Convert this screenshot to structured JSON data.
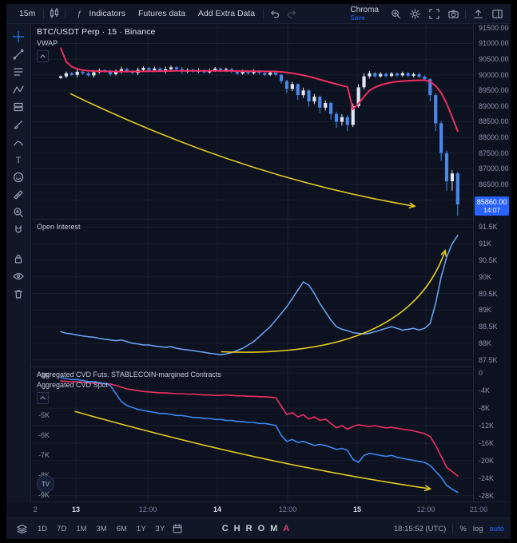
{
  "topbar": {
    "timeframe": "15m",
    "indicators_label": "Indicators",
    "futures_data_label": "Futures data",
    "add_extra_label": "Add Extra Data",
    "layout_name": "Chroma",
    "save_label": "Save"
  },
  "legend": {
    "symbol_title": "BTC/USDT Perp · 15 · Binance",
    "vwap_label": "VWAP",
    "oi_label": "Open Interest",
    "cvd_futs_label": "Aggregated CVD Futs. STABLECOIN-margined Contracts",
    "cvd_spot_label": "Aggregated CVD Spot",
    "logo_text": "TV"
  },
  "price_badge": {
    "price": "85860.00",
    "countdown": "14:07",
    "value": 85860
  },
  "time_axis": {
    "labels": [
      {
        "text": "2",
        "x": 6,
        "major": false,
        "grid": false
      },
      {
        "text": "13",
        "x": 57,
        "major": true,
        "grid": true
      },
      {
        "text": "12:00",
        "x": 147,
        "major": false,
        "grid": true
      },
      {
        "text": "14",
        "x": 234,
        "major": true,
        "grid": true
      },
      {
        "text": "12:00",
        "x": 322,
        "major": false,
        "grid": true
      },
      {
        "text": "15",
        "x": 409,
        "major": true,
        "grid": true
      },
      {
        "text": "12:00",
        "x": 495,
        "major": false,
        "grid": true
      },
      {
        "text": "21:00",
        "x": 561,
        "major": false,
        "grid": false
      }
    ]
  },
  "bottombar": {
    "ranges": [
      "1D",
      "7D",
      "1M",
      "3M",
      "6M",
      "1Y",
      "3Y"
    ],
    "brand_main": "CHROM",
    "brand_accent": "A",
    "clock": "18:15:52 (UTC)",
    "percent_label": "%",
    "log_label": "log",
    "auto_label": "auto"
  },
  "colors": {
    "accent_blue": "#2962ff",
    "candle_up": "#dfe8f6",
    "candle_down": "#4a87e8",
    "vwap_pink": "#ee2f63",
    "oi_blue": "#6ea6f8",
    "cvd_pink": "#ee2f63",
    "cvd_blue": "#3d86f0",
    "annotation_yellow": "#e3cc1e",
    "grid": "rgba(140,152,175,0.09)"
  },
  "annotations": [
    {
      "panel": 0,
      "from": [
        0.09,
        0.36
      ],
      "ctrl": [
        0.48,
        0.79
      ],
      "to": [
        0.865,
        0.935
      ]
    },
    {
      "panel": 1,
      "from": [
        0.43,
        0.9
      ],
      "ctrl": [
        0.85,
        0.95
      ],
      "to": [
        0.935,
        0.22
      ]
    },
    {
      "panel": 2,
      "from": [
        0.1,
        0.33
      ],
      "ctrl": [
        0.52,
        0.72
      ],
      "to": [
        0.9,
        0.9
      ]
    }
  ],
  "chart_data": [
    {
      "type": "candlestick",
      "title": "BTC/USDT Perp",
      "interval": "15",
      "exchange": "Binance",
      "ylim": [
        85400,
        91650
      ],
      "yticks": [
        91500,
        91000,
        90500,
        90000,
        89500,
        89000,
        88500,
        88000,
        87500,
        87000,
        86500,
        86000
      ],
      "overlay": {
        "name": "VWAP",
        "color": "#ee2f63",
        "values": [
          90850,
          90420,
          90260,
          90190,
          90150,
          90130,
          90120,
          90115,
          90110,
          90108,
          90106,
          90105,
          90105,
          90106,
          90108,
          90110,
          90112,
          90115,
          90118,
          90120,
          90122,
          90125,
          90126,
          90127,
          90128,
          90128,
          90128,
          90127,
          90126,
          90125,
          90124,
          90122,
          90120,
          90118,
          90116,
          90114,
          90112,
          90110,
          90108,
          90106,
          90095,
          90075,
          90050,
          90020,
          89985,
          89945,
          89900,
          89850,
          89800,
          89750,
          89700,
          89655,
          89615,
          88900,
          89080,
          89300,
          89500,
          89600,
          89670,
          89720,
          89760,
          89785,
          89800,
          89810,
          89818,
          89824,
          89828,
          89780,
          89650,
          89420,
          89080,
          88650,
          88200
        ]
      },
      "candles": [
        [
          89900,
          89980,
          89870,
          89950
        ],
        [
          89950,
          90110,
          89890,
          90050
        ],
        [
          90050,
          90090,
          89960,
          90000
        ],
        [
          90000,
          90180,
          89920,
          90100
        ],
        [
          90100,
          90150,
          90000,
          90050
        ],
        [
          90050,
          90085,
          89945,
          89980
        ],
        [
          89980,
          90150,
          89910,
          90080
        ],
        [
          90080,
          90195,
          90035,
          90150
        ],
        [
          90150,
          90180,
          90070,
          90100
        ],
        [
          90100,
          90160,
          89960,
          90020
        ],
        [
          90020,
          90160,
          89980,
          90120
        ],
        [
          90120,
          90260,
          90040,
          90180
        ],
        [
          90180,
          90230,
          90070,
          90120
        ],
        [
          90120,
          90155,
          90025,
          90060
        ],
        [
          90060,
          90230,
          89990,
          90160
        ],
        [
          90160,
          90265,
          90115,
          90220
        ],
        [
          90220,
          90250,
          90120,
          90150
        ],
        [
          90150,
          90260,
          90090,
          90200
        ],
        [
          90200,
          90240,
          90080,
          90120
        ],
        [
          90120,
          90260,
          90040,
          90180
        ],
        [
          90180,
          90290,
          90130,
          90240
        ],
        [
          90240,
          90275,
          90145,
          90180
        ],
        [
          90180,
          90250,
          90030,
          90100
        ],
        [
          90100,
          90205,
          90055,
          90160
        ],
        [
          90160,
          90190,
          90070,
          90100
        ],
        [
          90100,
          90200,
          90060,
          90150
        ],
        [
          90150,
          90180,
          90030,
          90080
        ],
        [
          90080,
          90190,
          90040,
          90140
        ],
        [
          90140,
          90250,
          90100,
          90200
        ],
        [
          90200,
          90230,
          90080,
          90130
        ],
        [
          90130,
          90230,
          90090,
          90180
        ],
        [
          90180,
          90210,
          90050,
          90100
        ],
        [
          90100,
          90130,
          89990,
          90040
        ],
        [
          90040,
          90160,
          90000,
          90110
        ],
        [
          90110,
          90140,
          90000,
          90050
        ],
        [
          90050,
          90170,
          90010,
          90120
        ],
        [
          90120,
          90150,
          90010,
          90060
        ],
        [
          90060,
          90100,
          89950,
          90000
        ],
        [
          90000,
          90120,
          89960,
          90070
        ],
        [
          90070,
          90110,
          89950,
          90000
        ],
        [
          90000,
          90030,
          89720,
          89800
        ],
        [
          89800,
          89840,
          89420,
          89550
        ],
        [
          89550,
          89780,
          89480,
          89700
        ],
        [
          89700,
          89730,
          89200,
          89350
        ],
        [
          89350,
          89590,
          89260,
          89500
        ],
        [
          89500,
          89540,
          88980,
          89150
        ],
        [
          89150,
          89390,
          89060,
          89300
        ],
        [
          89300,
          89340,
          88780,
          88950
        ],
        [
          88950,
          89180,
          88860,
          89100
        ],
        [
          89100,
          89140,
          88560,
          88750
        ],
        [
          88750,
          88820,
          88300,
          88500
        ],
        [
          88500,
          88740,
          88380,
          88650
        ],
        [
          88650,
          88720,
          88200,
          88400
        ],
        [
          88400,
          89080,
          88330,
          89000
        ],
        [
          89000,
          89700,
          88950,
          89600
        ],
        [
          89600,
          90050,
          89540,
          89950
        ],
        [
          89950,
          90120,
          89880,
          90050
        ],
        [
          90050,
          90100,
          89900,
          89950
        ],
        [
          89950,
          90080,
          89900,
          90030
        ],
        [
          90030,
          90070,
          89910,
          89960
        ],
        [
          89960,
          90090,
          89920,
          90040
        ],
        [
          90040,
          90080,
          89930,
          89980
        ],
        [
          89980,
          90100,
          89940,
          90050
        ],
        [
          90050,
          90090,
          89920,
          89970
        ],
        [
          89970,
          90070,
          89920,
          90020
        ],
        [
          90020,
          90060,
          89890,
          89940
        ],
        [
          89940,
          89980,
          89800,
          89860
        ],
        [
          89860,
          89890,
          89150,
          89350
        ],
        [
          89350,
          89400,
          88200,
          88450
        ],
        [
          88450,
          88520,
          87250,
          87500
        ],
        [
          87500,
          87580,
          86300,
          86600
        ],
        [
          86600,
          86950,
          86300,
          86850
        ],
        [
          86850,
          86900,
          85500,
          85860
        ]
      ]
    },
    {
      "type": "line",
      "name": "Open Interest",
      "color": "#6ea6f8",
      "ylim": [
        87.3,
        91.75
      ],
      "yticks": [
        91.5,
        91,
        90.5,
        90,
        89.5,
        89,
        88.5,
        88,
        87.5
      ],
      "unit": "K",
      "values": [
        88.35,
        88.3,
        88.28,
        88.25,
        88.22,
        88.2,
        88.18,
        88.15,
        88.12,
        88.1,
        88.08,
        88.1,
        88.05,
        88.0,
        87.98,
        87.95,
        87.95,
        87.92,
        87.9,
        87.88,
        87.9,
        87.85,
        87.82,
        87.8,
        87.78,
        87.75,
        87.73,
        87.7,
        87.68,
        87.65,
        87.68,
        87.72,
        87.78,
        87.85,
        87.95,
        88.05,
        88.2,
        88.35,
        88.5,
        88.7,
        88.9,
        89.1,
        89.35,
        89.6,
        89.85,
        89.75,
        89.5,
        89.2,
        88.95,
        88.7,
        88.5,
        88.42,
        88.38,
        88.32,
        88.3,
        88.28,
        88.3,
        88.35,
        88.4,
        88.45,
        88.5,
        88.45,
        88.4,
        88.42,
        88.45,
        88.4,
        88.45,
        88.6,
        89.2,
        90.0,
        90.6,
        91.0,
        91.25
      ]
    },
    {
      "type": "line-multi",
      "right_ylim": [
        -29.5,
        1.5
      ],
      "right_ticks": [
        0,
        -4,
        -8,
        -12,
        -16,
        -20,
        -24,
        -28
      ],
      "left_ylim": [
        -9.35,
        -2.55
      ],
      "left_ticks": [
        -3,
        -4,
        -5,
        -6,
        -7,
        -8,
        -9
      ],
      "unit": "K",
      "series": [
        {
          "name": "Aggregated CVD Futs. STABLECOIN-margined Contracts",
          "axis": "right",
          "color": "#ee2f63",
          "values": [
            -1.8,
            -1.9,
            -2.0,
            -2.0,
            -2.1,
            -2.2,
            -2.3,
            -2.3,
            -2.4,
            -2.5,
            -2.8,
            -3.2,
            -3.6,
            -3.8,
            -4.0,
            -4.2,
            -4.3,
            -4.4,
            -4.5,
            -4.5,
            -4.6,
            -4.7,
            -4.7,
            -4.8,
            -4.8,
            -4.9,
            -5.0,
            -5.0,
            -5.1,
            -5.1,
            -5.0,
            -5.1,
            -5.2,
            -5.2,
            -5.3,
            -5.3,
            -5.4,
            -5.4,
            -5.5,
            -5.6,
            -7.5,
            -9.5,
            -9.0,
            -10.0,
            -9.5,
            -10.5,
            -10.0,
            -10.8,
            -10.5,
            -11.5,
            -12.5,
            -12.0,
            -12.8,
            -12.2,
            -11.8,
            -12.0,
            -12.2,
            -12.0,
            -12.3,
            -12.5,
            -12.4,
            -12.6,
            -12.8,
            -13.0,
            -13.2,
            -13.5,
            -13.8,
            -14.5,
            -16.5,
            -19.0,
            -21.5,
            -22.5,
            -23.5
          ]
        },
        {
          "name": "Aggregated CVD Spot",
          "axis": "left",
          "color": "#3d86f0",
          "values": [
            -3.1,
            -3.15,
            -3.2,
            -3.2,
            -3.25,
            -3.3,
            -3.3,
            -3.35,
            -3.4,
            -3.5,
            -3.9,
            -4.3,
            -4.5,
            -4.6,
            -4.7,
            -4.75,
            -4.8,
            -4.85,
            -4.9,
            -4.9,
            -4.95,
            -5.0,
            -5.0,
            -5.05,
            -5.1,
            -5.1,
            -5.15,
            -5.15,
            -5.2,
            -5.2,
            -5.25,
            -5.25,
            -5.3,
            -5.3,
            -5.35,
            -5.35,
            -5.4,
            -5.4,
            -5.45,
            -5.5,
            -6.0,
            -6.3,
            -6.2,
            -6.35,
            -6.3,
            -6.4,
            -6.5,
            -6.45,
            -6.5,
            -6.6,
            -6.7,
            -6.65,
            -6.75,
            -7.2,
            -7.35,
            -7.0,
            -6.9,
            -6.95,
            -7.0,
            -7.05,
            -7.0,
            -7.1,
            -7.15,
            -7.2,
            -7.25,
            -7.3,
            -7.35,
            -7.5,
            -7.8,
            -8.1,
            -8.5,
            -8.7,
            -8.85
          ]
        }
      ]
    }
  ]
}
